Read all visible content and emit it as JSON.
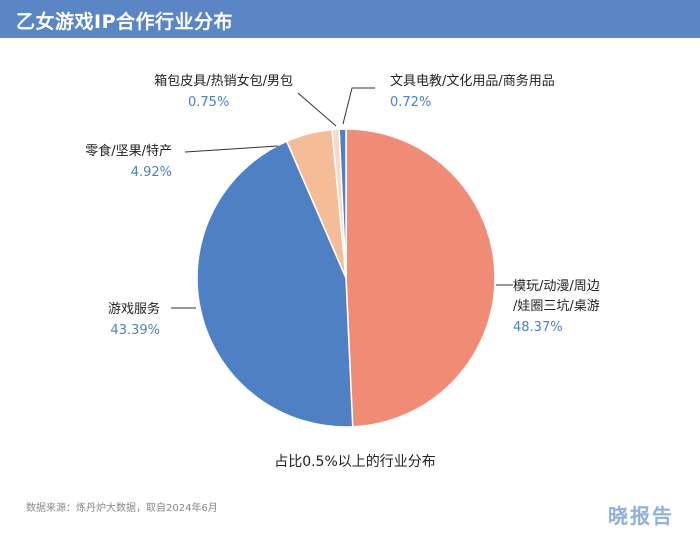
{
  "header": {
    "title": "乙女游戏IP合作行业分布"
  },
  "footer": {
    "source": "数据来源：炼丹炉大数据，取自2024年6月",
    "logo": "晓报告"
  },
  "chart_data": {
    "type": "pie",
    "caption": "占比0.5%以上的行业分布",
    "slices": [
      {
        "label_lines": [
          "模玩/动漫/周边",
          "/娃圈三坑/桌游"
        ],
        "value": 48.37,
        "value_text": "48.37%",
        "color": "#f08c75"
      },
      {
        "label_lines": [
          "游戏服务"
        ],
        "value": 43.39,
        "value_text": "43.39%",
        "color": "#4f80c4"
      },
      {
        "label_lines": [
          "零食/坚果/特产"
        ],
        "value": 4.92,
        "value_text": "4.92%",
        "color": "#f5bd97"
      },
      {
        "label_lines": [
          "箱包皮具/热销女包/男包"
        ],
        "value": 0.75,
        "value_text": "0.75%",
        "color": "#f8d9c4"
      },
      {
        "label_lines": [
          "文具电教/文化用品/商务用品"
        ],
        "value": 0.72,
        "value_text": "0.72%",
        "color": "#4f80c4"
      }
    ],
    "colors": {
      "label_text": "#222222",
      "value_text": "#4f80c4",
      "leader": "#333333",
      "header_bg": "#5b86c5"
    }
  }
}
